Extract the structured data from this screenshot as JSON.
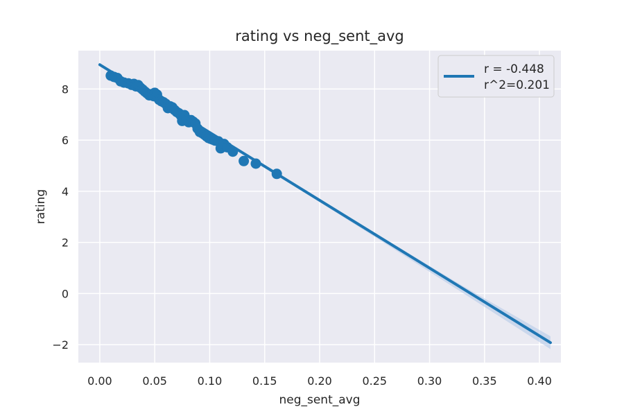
{
  "chart_data": {
    "type": "scatter",
    "title": "rating vs neg_sent_avg",
    "xlabel": "neg_sent_avg",
    "ylabel": "rating",
    "xlim": [
      -0.0195,
      0.4195
    ],
    "ylim": [
      -2.7,
      9.5
    ],
    "xticks": [
      0.0,
      0.05,
      0.1,
      0.15,
      0.2,
      0.25,
      0.3,
      0.35,
      0.4
    ],
    "xtick_labels": [
      "0.00",
      "0.05",
      "0.10",
      "0.15",
      "0.20",
      "0.25",
      "0.30",
      "0.35",
      "0.40"
    ],
    "yticks": [
      -2,
      0,
      2,
      4,
      6,
      8
    ],
    "ytick_labels": [
      "−2",
      "0",
      "2",
      "4",
      "6",
      "8"
    ],
    "grid": true,
    "legend_position": "top-right",
    "legend_lines": [
      "r = -0.448",
      "r^2=0.201"
    ],
    "points": [
      {
        "x": 0.01,
        "y": 8.52
      },
      {
        "x": 0.013,
        "y": 8.47
      },
      {
        "x": 0.016,
        "y": 8.43
      },
      {
        "x": 0.019,
        "y": 8.3
      },
      {
        "x": 0.022,
        "y": 8.25
      },
      {
        "x": 0.026,
        "y": 8.22
      },
      {
        "x": 0.029,
        "y": 8.16
      },
      {
        "x": 0.031,
        "y": 8.2
      },
      {
        "x": 0.033,
        "y": 8.1
      },
      {
        "x": 0.035,
        "y": 8.15
      },
      {
        "x": 0.037,
        "y": 8.05
      },
      {
        "x": 0.039,
        "y": 7.98
      },
      {
        "x": 0.041,
        "y": 7.9
      },
      {
        "x": 0.043,
        "y": 7.83
      },
      {
        "x": 0.045,
        "y": 7.75
      },
      {
        "x": 0.047,
        "y": 7.8
      },
      {
        "x": 0.049,
        "y": 7.72
      },
      {
        "x": 0.05,
        "y": 7.85
      },
      {
        "x": 0.052,
        "y": 7.78
      },
      {
        "x": 0.054,
        "y": 7.58
      },
      {
        "x": 0.056,
        "y": 7.52
      },
      {
        "x": 0.058,
        "y": 7.48
      },
      {
        "x": 0.06,
        "y": 7.42
      },
      {
        "x": 0.062,
        "y": 7.25
      },
      {
        "x": 0.064,
        "y": 7.32
      },
      {
        "x": 0.066,
        "y": 7.28
      },
      {
        "x": 0.068,
        "y": 7.18
      },
      {
        "x": 0.07,
        "y": 7.1
      },
      {
        "x": 0.072,
        "y": 7.05
      },
      {
        "x": 0.074,
        "y": 6.95
      },
      {
        "x": 0.075,
        "y": 6.75
      },
      {
        "x": 0.077,
        "y": 6.98
      },
      {
        "x": 0.079,
        "y": 6.82
      },
      {
        "x": 0.081,
        "y": 6.7
      },
      {
        "x": 0.083,
        "y": 6.78
      },
      {
        "x": 0.085,
        "y": 6.72
      },
      {
        "x": 0.087,
        "y": 6.65
      },
      {
        "x": 0.089,
        "y": 6.45
      },
      {
        "x": 0.091,
        "y": 6.32
      },
      {
        "x": 0.093,
        "y": 6.28
      },
      {
        "x": 0.095,
        "y": 6.22
      },
      {
        "x": 0.097,
        "y": 6.15
      },
      {
        "x": 0.099,
        "y": 6.08
      },
      {
        "x": 0.101,
        "y": 6.05
      },
      {
        "x": 0.103,
        "y": 6.02
      },
      {
        "x": 0.105,
        "y": 5.98
      },
      {
        "x": 0.108,
        "y": 5.95
      },
      {
        "x": 0.11,
        "y": 5.68
      },
      {
        "x": 0.113,
        "y": 5.85
      },
      {
        "x": 0.116,
        "y": 5.72
      },
      {
        "x": 0.121,
        "y": 5.55
      },
      {
        "x": 0.131,
        "y": 5.18
      },
      {
        "x": 0.142,
        "y": 5.08
      },
      {
        "x": 0.161,
        "y": 4.68
      }
    ],
    "fit_line": {
      "x": [
        0.0,
        0.41
      ],
      "y": [
        8.95,
        -1.92
      ]
    },
    "confidence_band": {
      "x": [
        0.0,
        0.16,
        0.25,
        0.33,
        0.41
      ],
      "lower": [
        8.9,
        4.66,
        2.22,
        0.03,
        -2.17
      ],
      "upper": [
        9.0,
        4.7,
        2.38,
        0.3,
        -1.67
      ]
    },
    "colors": {
      "series": "#1f77b4",
      "band": "#aec7e8",
      "plot_background": "#eaeaf2",
      "grid": "#ffffff",
      "legend_border": "#cccccc"
    }
  }
}
